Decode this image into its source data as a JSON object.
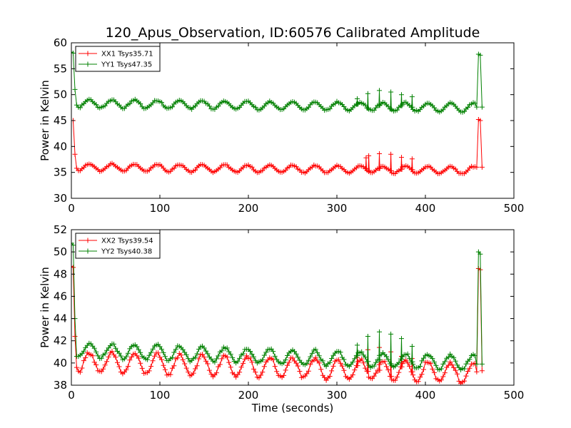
{
  "figure": {
    "title": "120_Apus_Observation, ID:60576 Calibrated Amplitude",
    "xlabel": "Time (seconds)"
  },
  "colors": {
    "xx": "#ff0000",
    "yy": "#008000"
  },
  "chart_data": [
    {
      "type": "line",
      "ylabel": "Power in Kelvin",
      "xlim": [
        0,
        500
      ],
      "ylim": [
        30,
        60
      ],
      "xticks": [
        "0",
        "100",
        "200",
        "300",
        "400",
        "500"
      ],
      "yticks": [
        "30",
        "35",
        "40",
        "45",
        "50",
        "55",
        "60"
      ],
      "legend_position": "top-left",
      "series": [
        {
          "name": "XX1 Tsys35.71",
          "color": "#ff0000",
          "baseline": 36.0,
          "drift": -0.6,
          "wave_amp": 0.7,
          "wave_period": 25.5,
          "start": [
            [
              0,
              45.0
            ],
            [
              2,
              45.0
            ],
            [
              4,
              38.5
            ],
            [
              6,
              35.8
            ]
          ],
          "end": [
            [
              458,
              36.0
            ],
            [
              460,
              45.2
            ],
            [
              462,
              45.0
            ],
            [
              464,
              36.0
            ]
          ],
          "spikes": [
            [
              333,
              37.8
            ],
            [
              336,
              38.2
            ],
            [
              348,
              38.6
            ],
            [
              361,
              38.5
            ],
            [
              373,
              37.9
            ],
            [
              385,
              37.6
            ]
          ],
          "x_end": 464
        },
        {
          "name": "YY1 Tsys47.35",
          "color": "#008000",
          "baseline": 48.3,
          "drift": -0.8,
          "wave_amp": 0.8,
          "wave_period": 25.5,
          "start": [
            [
              0,
              58.2
            ],
            [
              2,
              58.0
            ],
            [
              4,
              51.0
            ],
            [
              6,
              48.0
            ]
          ],
          "end": [
            [
              458,
              47.6
            ],
            [
              460,
              57.8
            ],
            [
              462,
              57.6
            ],
            [
              464,
              47.6
            ]
          ],
          "spikes": [
            [
              323,
              49.2
            ],
            [
              335,
              50.2
            ],
            [
              348,
              50.8
            ],
            [
              361,
              50.5
            ],
            [
              373,
              50.0
            ],
            [
              385,
              49.6
            ]
          ],
          "x_end": 464
        }
      ]
    },
    {
      "type": "line",
      "ylabel": "Power in Kelvin",
      "xlim": [
        0,
        500
      ],
      "ylim": [
        38,
        52
      ],
      "xticks": [
        "0",
        "100",
        "200",
        "300",
        "400",
        "500"
      ],
      "yticks": [
        "38",
        "40",
        "42",
        "44",
        "46",
        "48",
        "50",
        "52"
      ],
      "legend_position": "top-left",
      "series": [
        {
          "name": "XX2 Tsys39.54",
          "color": "#ff0000",
          "baseline": 40.1,
          "drift": -1.0,
          "wave_amp": 0.9,
          "wave_period": 25.5,
          "start": [
            [
              0,
              48.7
            ],
            [
              2,
              48.6
            ],
            [
              4,
              42.4
            ],
            [
              6,
              39.6
            ]
          ],
          "end": [
            [
              458,
              39.2
            ],
            [
              460,
              48.5
            ],
            [
              462,
              48.4
            ],
            [
              464,
              39.3
            ]
          ],
          "spikes": [
            [
              323,
              40.5
            ],
            [
              335,
              41.2
            ],
            [
              348,
              41.4
            ],
            [
              361,
              41.0
            ],
            [
              373,
              40.6
            ],
            [
              385,
              40.4
            ]
          ],
          "x_end": 464
        },
        {
          "name": "YY2 Tsys40.38",
          "color": "#008000",
          "baseline": 41.2,
          "drift": -1.2,
          "wave_amp": 0.65,
          "wave_period": 25.5,
          "start": [
            [
              0,
              50.8
            ],
            [
              2,
              50.6
            ],
            [
              4,
              44.0
            ],
            [
              6,
              40.6
            ]
          ],
          "end": [
            [
              458,
              39.9
            ],
            [
              460,
              50.0
            ],
            [
              462,
              49.8
            ],
            [
              464,
              39.9
            ]
          ],
          "spikes": [
            [
              323,
              41.6
            ],
            [
              335,
              42.4
            ],
            [
              348,
              42.8
            ],
            [
              361,
              42.6
            ],
            [
              373,
              42.2
            ],
            [
              385,
              41.5
            ]
          ],
          "x_end": 464
        }
      ]
    }
  ]
}
